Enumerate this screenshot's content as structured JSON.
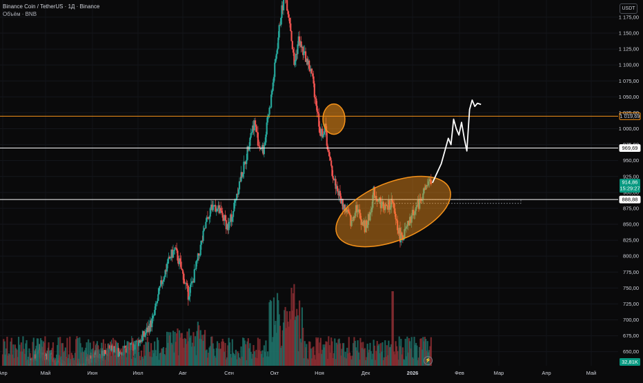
{
  "legend": {
    "title": "Binance Coin / TetherUS · 1Д · Binance",
    "volume": "Объём · BNB"
  },
  "currency_button": "USDT",
  "colors": {
    "up": "#26a69a",
    "down": "#ef5350",
    "up_volume": "#1f6f66",
    "down_volume": "#8b2e33",
    "orange": "#f7931a",
    "white_line": "#ffffff",
    "price_badge": "#089981"
  },
  "icons": {
    "bolt": "lightning-icon"
  },
  "chart_data": {
    "type": "candlestick",
    "symbol": "BNBUSDT",
    "interval": "1Д",
    "y_ticks": [
      "1 175,00",
      "1 150,00",
      "1 125,00",
      "1 100,00",
      "1 075,00",
      "1 050,00",
      "1 025,00",
      "1 000,00",
      "975,00",
      "950,00",
      "925,00",
      "900,00",
      "875,00",
      "850,00",
      "825,00",
      "800,00",
      "775,00",
      "750,00",
      "725,00",
      "700,00",
      "675,00",
      "650,00"
    ],
    "x_ticks": [
      "Апр",
      "Май",
      "Июн",
      "Июл",
      "Авг",
      "Сен",
      "Окт",
      "Ноя",
      "Дек",
      "2026",
      "Фев",
      "Мар",
      "Апр",
      "Май"
    ],
    "ylim": [
      628,
      1202
    ],
    "xlim": [
      0,
      540
    ],
    "series_points": [
      [
        0,
        600
      ],
      [
        10,
        602
      ],
      [
        20,
        610
      ],
      [
        30,
        630
      ],
      [
        40,
        650
      ],
      [
        55,
        640
      ],
      [
        70,
        620
      ],
      [
        85,
        625
      ],
      [
        100,
        640
      ],
      [
        110,
        648
      ],
      [
        120,
        652
      ],
      [
        130,
        650
      ],
      [
        145,
        655
      ],
      [
        160,
        675
      ],
      [
        170,
        700
      ],
      [
        175,
        730
      ],
      [
        180,
        760
      ],
      [
        185,
        780
      ],
      [
        190,
        800
      ],
      [
        195,
        810
      ],
      [
        200,
        790
      ],
      [
        205,
        765
      ],
      [
        210,
        740
      ],
      [
        215,
        760
      ],
      [
        220,
        790
      ],
      [
        225,
        820
      ],
      [
        230,
        850
      ],
      [
        235,
        875
      ],
      [
        240,
        880
      ],
      [
        245,
        870
      ],
      [
        250,
        860
      ],
      [
        255,
        845
      ],
      [
        260,
        865
      ],
      [
        265,
        900
      ],
      [
        270,
        925
      ],
      [
        275,
        950
      ],
      [
        280,
        990
      ],
      [
        285,
        1010
      ],
      [
        290,
        975
      ],
      [
        295,
        965
      ],
      [
        300,
        1010
      ],
      [
        305,
        1060
      ],
      [
        310,
        1120
      ],
      [
        315,
        1180
      ],
      [
        320,
        1210
      ],
      [
        325,
        1170
      ],
      [
        330,
        1100
      ],
      [
        335,
        1140
      ],
      [
        340,
        1120
      ],
      [
        345,
        1105
      ],
      [
        350,
        1085
      ],
      [
        355,
        1040
      ],
      [
        360,
        990
      ],
      [
        365,
        1000
      ],
      [
        370,
        950
      ],
      [
        375,
        920
      ],
      [
        380,
        900
      ],
      [
        385,
        880
      ],
      [
        390,
        870
      ],
      [
        395,
        850
      ],
      [
        400,
        880
      ],
      [
        405,
        860
      ],
      [
        410,
        845
      ],
      [
        415,
        860
      ],
      [
        420,
        900
      ],
      [
        425,
        890
      ],
      [
        430,
        880
      ],
      [
        435,
        875
      ],
      [
        440,
        885
      ],
      [
        445,
        860
      ],
      [
        450,
        830
      ],
      [
        455,
        835
      ],
      [
        460,
        850
      ],
      [
        465,
        870
      ],
      [
        470,
        880
      ],
      [
        475,
        895
      ],
      [
        480,
        910
      ],
      [
        485,
        915
      ]
    ],
    "volume_max": "32,81K",
    "horizontal_levels": [
      {
        "value": 1019.69,
        "label": "1 019,69",
        "color": "#f7931a",
        "badge": "#f7931a"
      },
      {
        "value": 969.69,
        "label": "969,69",
        "color": "#ffffff",
        "badge": "#ffffff"
      },
      {
        "value": 888.88,
        "label": "888,88",
        "color": "#ffffff",
        "badge": "#ffffff"
      }
    ],
    "current_price": {
      "value": 914.86,
      "label": "914,86",
      "countdown": "15:29:27"
    },
    "volume_label": "32,81K",
    "projection": [
      [
        485,
        915
      ],
      [
        490,
        930
      ],
      [
        495,
        945
      ],
      [
        500,
        970
      ],
      [
        503,
        985
      ],
      [
        506,
        975
      ],
      [
        509,
        1015
      ],
      [
        512,
        1000
      ],
      [
        515,
        990
      ],
      [
        518,
        1010
      ],
      [
        521,
        985
      ],
      [
        524,
        965
      ],
      [
        527,
        1030
      ],
      [
        530,
        1045
      ],
      [
        533,
        1035
      ],
      [
        536,
        1040
      ],
      [
        540,
        1038
      ]
    ]
  }
}
